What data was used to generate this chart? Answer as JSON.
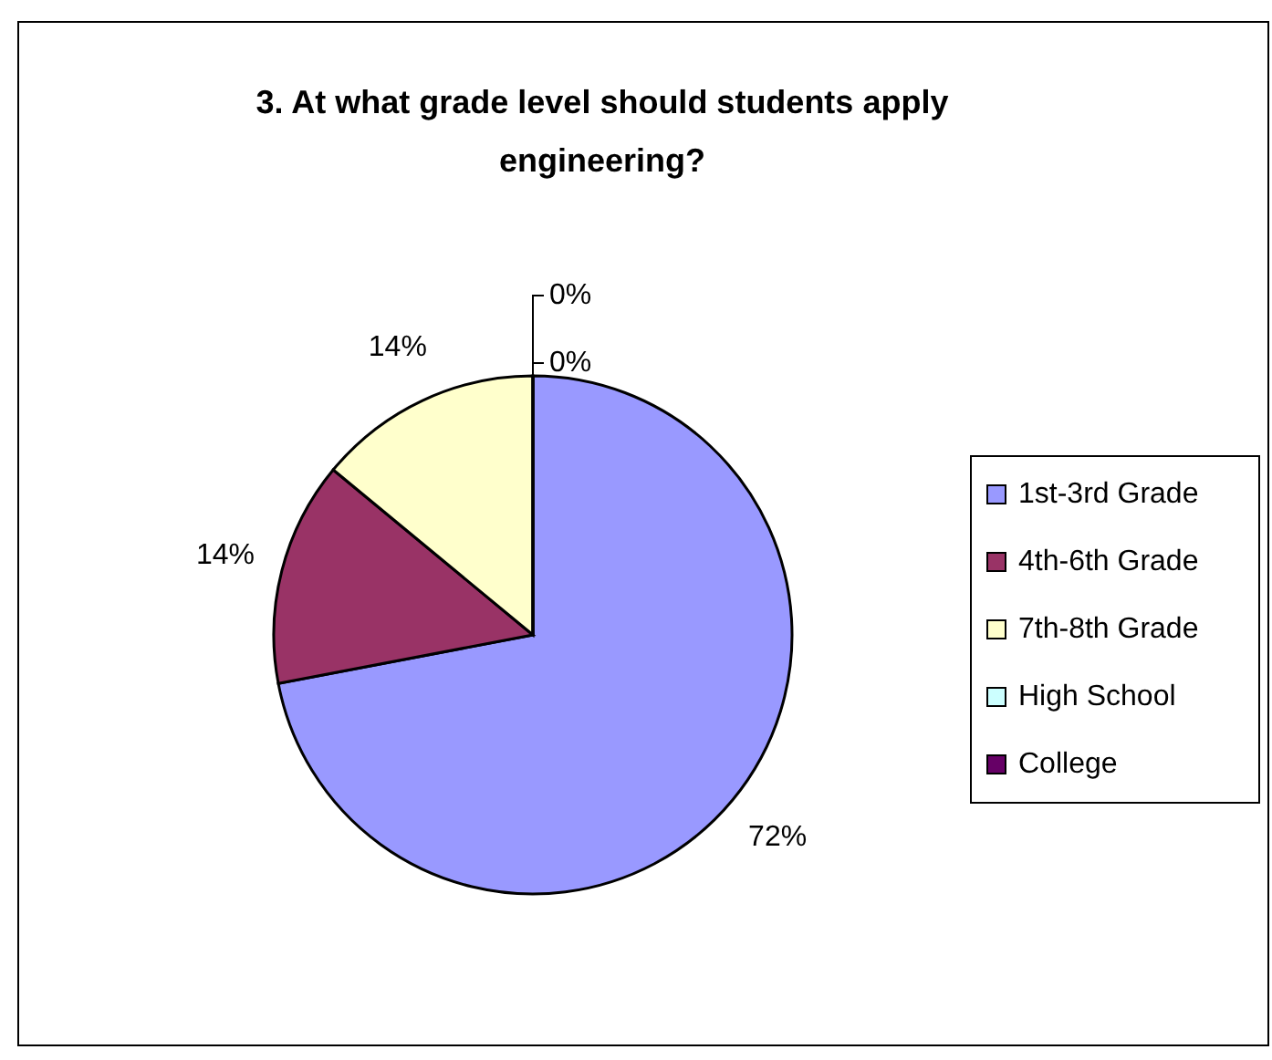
{
  "chart_data": {
    "type": "pie",
    "title": "3. At what grade level should students apply engineering?",
    "categories": [
      "1st-3rd Grade",
      "4th-6th Grade",
      "7th-8th Grade",
      "High School",
      "College"
    ],
    "values": [
      72,
      14,
      14,
      0,
      0
    ],
    "colors": [
      "#9999ff",
      "#993366",
      "#ffffcc",
      "#ccffff",
      "#660066"
    ],
    "value_labels": [
      "72%",
      "14%",
      "14%",
      "0%",
      "0%"
    ],
    "legend": "right"
  }
}
